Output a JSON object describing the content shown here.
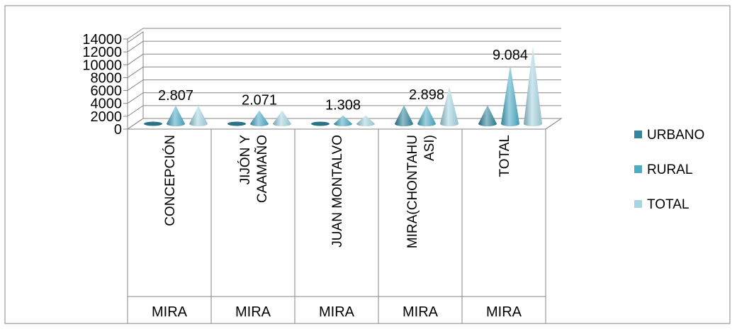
{
  "chart_data": {
    "type": "bar",
    "style": "3d-cone",
    "categories": [
      "CONCEPCIÓN",
      "JIJÓN Y CAAMAÑO",
      "JUAN MONTALVO",
      "MIRA(CHONTAHUASI)",
      "TOTAL"
    ],
    "category_labels": [
      [
        "CONCEPCIÓN"
      ],
      [
        "JIJÓN Y",
        "CAAMAÑO"
      ],
      [
        "JUAN MONTALVO"
      ],
      [
        "MIRA(CHONTAHU",
        "ASI)"
      ],
      [
        "TOTAL"
      ]
    ],
    "group_labels": [
      "MIRA",
      "MIRA",
      "MIRA",
      "MIRA",
      "MIRA"
    ],
    "series": [
      {
        "name": "URBANO",
        "color": "#31859C",
        "values": [
          0,
          0,
          0,
          2898,
          2898
        ]
      },
      {
        "name": "RURAL",
        "color": "#4BACC6",
        "values": [
          2807,
          2071,
          1308,
          2898,
          9084
        ]
      },
      {
        "name": "TOTAL",
        "color": "#A5D5E2",
        "values": [
          2807,
          2071,
          1308,
          5796,
          11982
        ]
      }
    ],
    "data_labels": [
      "2.807",
      "2.071",
      "1.308",
      "2.898",
      "9.084"
    ],
    "yticks": [
      "0",
      "2000",
      "4000",
      "6000",
      "8000",
      "10000",
      "12000",
      "14000"
    ],
    "ylim": [
      0,
      14000
    ],
    "grid": true,
    "legend_position": "right"
  }
}
